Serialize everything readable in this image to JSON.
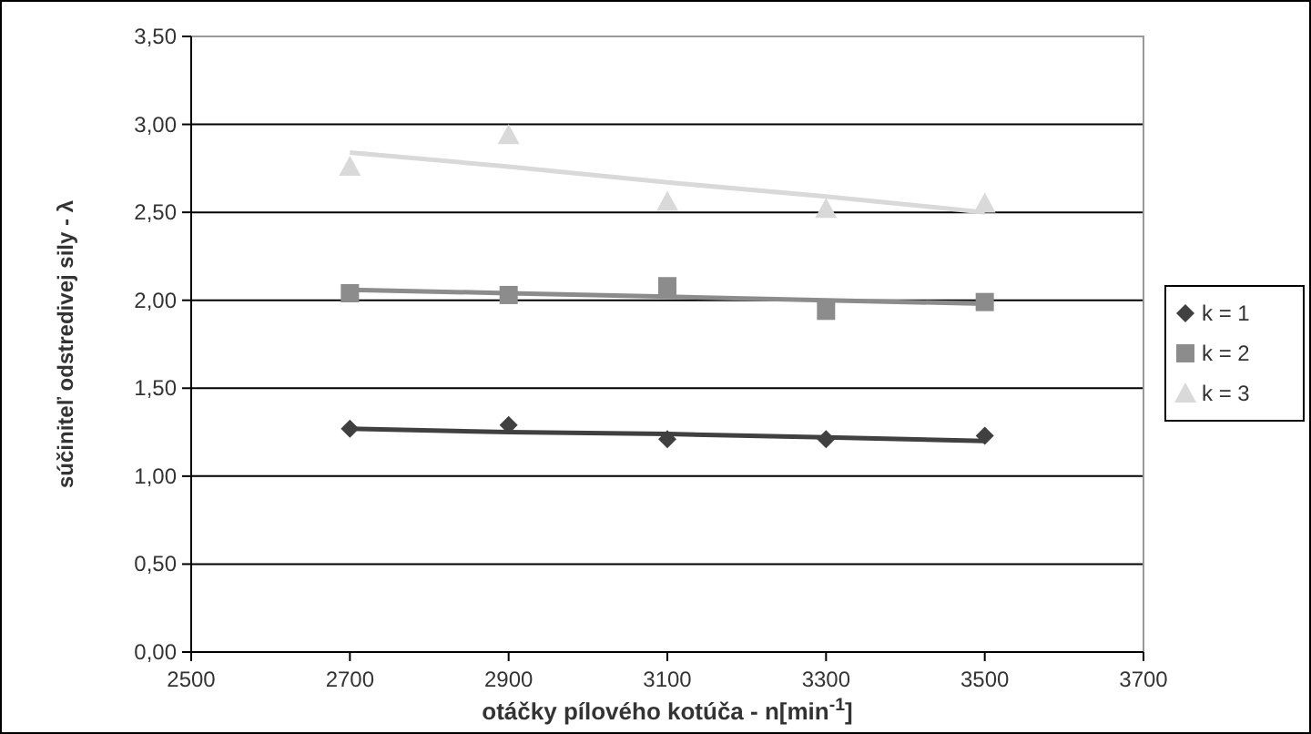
{
  "chart_data": {
    "type": "scatter",
    "xlabel": "otáčky pílového kotúča - n[min$^{-1}$]",
    "ylabel": "súčiniteľ odstredivej sily - λ",
    "x": [
      2700,
      2900,
      3100,
      3300,
      3500
    ],
    "series": [
      {
        "name": "k = 1",
        "color": "#404040",
        "marker": "diamond",
        "values": [
          1.27,
          1.29,
          1.21,
          1.21,
          1.23
        ]
      },
      {
        "name": "k = 2",
        "color": "#8c8c8c",
        "marker": "square",
        "values": [
          2.04,
          2.03,
          2.08,
          1.94,
          1.99
        ]
      },
      {
        "name": "k = 3",
        "color": "#d9d9d9",
        "marker": "triangle",
        "values": [
          2.76,
          2.94,
          2.56,
          2.52,
          2.55
        ]
      },
      {
        "type": "line",
        "color": "#404040",
        "marker": "none",
        "values": [
          1.27,
          1.25,
          1.24,
          1.22,
          1.2
        ]
      },
      {
        "type": "line",
        "color": "#8c8c8c",
        "marker": "none",
        "values": [
          2.06,
          2.04,
          2.02,
          2.0,
          1.98
        ]
      },
      {
        "type": "line",
        "color": "#d9d9d9",
        "marker": "none",
        "values": [
          2.84,
          2.76,
          2.67,
          2.59,
          2.5
        ]
      }
    ],
    "xlim": [
      2500,
      3700
    ],
    "xticks": [
      2500,
      2700,
      2900,
      3100,
      3300,
      3500,
      3700
    ],
    "ylim": [
      0,
      3.5
    ],
    "yticks": [
      {
        "value": 0,
        "label": "0,00"
      },
      {
        "value": 0.5,
        "label": "0,50"
      },
      {
        "value": 1,
        "label": "1,00"
      },
      {
        "value": 1.5,
        "label": "1,50"
      },
      {
        "value": 2,
        "label": "2,00"
      },
      {
        "value": 2.5,
        "label": "2,50"
      },
      {
        "value": 3,
        "label": "3,00"
      },
      {
        "value": 3.5,
        "label": "3,50"
      }
    ],
    "grid": "y",
    "legend": "right"
  }
}
